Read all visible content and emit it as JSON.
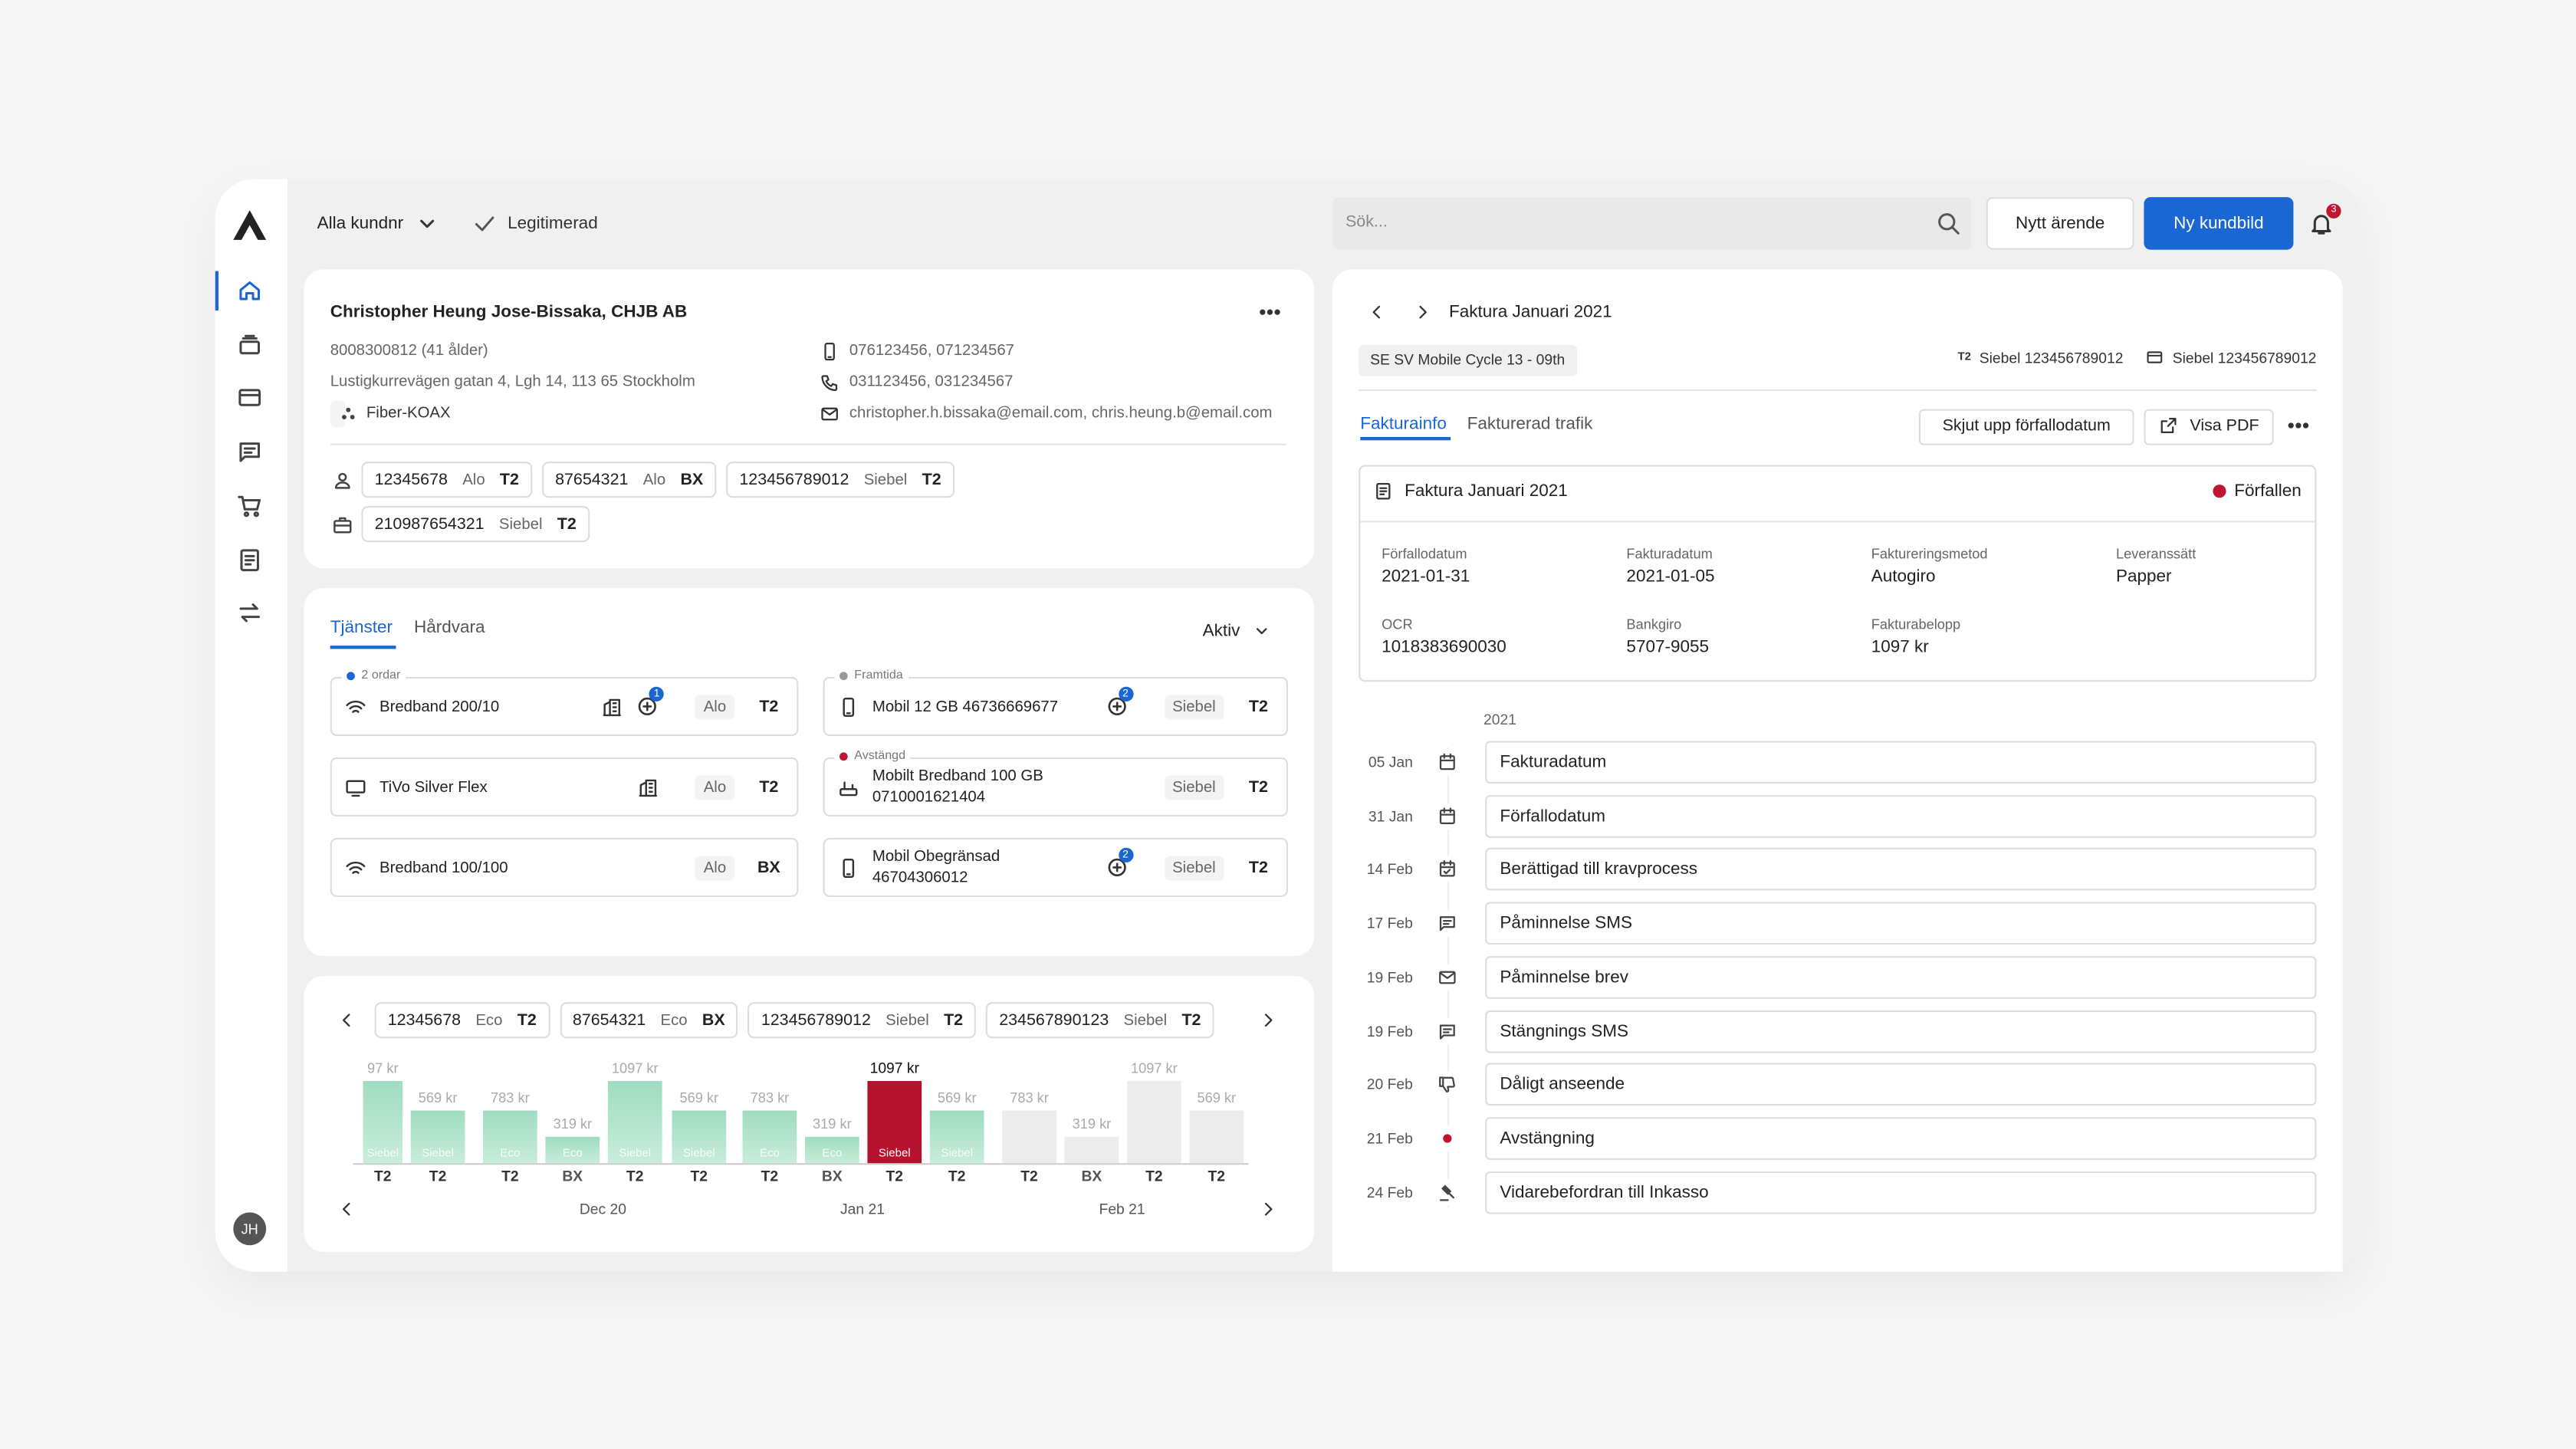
{
  "topbar": {
    "customer_filter": "Alla kundnr",
    "status": "Legitimerad",
    "search_placeholder": "Sök...",
    "new_case": "Nytt ärende",
    "new_view": "Ny kundbild",
    "notifications": "3"
  },
  "user": {
    "initials": "JH"
  },
  "customer": {
    "name": "Christopher Heung Jose-Bissaka, CHJB AB",
    "id_age": "8008300812 (41 ålder)",
    "address": "Lustigkurrevägen gatan 4, Lgh 14, 113 65 Stockholm",
    "connection": "Fiber-KOAX",
    "mobile": "076123456, 071234567",
    "phone": "031123456, 031234567",
    "email": "christopher.h.bissaka@email.com, chris.heung.b@email.com",
    "accounts": [
      [
        {
          "number": "12345678",
          "system": "Alo",
          "brand": "T2"
        },
        {
          "number": "87654321",
          "system": "Alo",
          "brand": "BX"
        },
        {
          "number": "123456789012",
          "system": "Siebel",
          "brand": "T2"
        }
      ],
      [
        {
          "number": "210987654321",
          "system": "Siebel",
          "brand": "T2"
        }
      ]
    ]
  },
  "services": {
    "tabs": [
      "Tjänster",
      "Hårdvara"
    ],
    "filter": "Aktiv",
    "items": [
      {
        "status": "2 ordar",
        "name": "Bredband 200/10",
        "orders": "1",
        "system": "Alo",
        "brand": "T2"
      },
      {
        "name": "TiVo Silver Flex",
        "system": "Alo",
        "brand": "T2"
      },
      {
        "name": "Bredband 100/100",
        "system": "Alo",
        "brand": "BX"
      },
      {
        "status": "Framtida",
        "name": "Mobil 12 GB 46736669677",
        "orders": "2",
        "system": "Siebel",
        "brand": "T2"
      },
      {
        "status": "Avstängd",
        "name": "Mobilt Bredband 100 GB",
        "number": "0710001621404",
        "system": "Siebel",
        "brand": "T2"
      },
      {
        "name": "Mobil Obegränsad 46704306012",
        "orders": "2",
        "system": "Siebel",
        "brand": "T2"
      }
    ]
  },
  "billing_history": {
    "accounts": [
      {
        "number": "12345678",
        "system": "Eco",
        "brand": "T2"
      },
      {
        "number": "87654321",
        "system": "Eco",
        "brand": "BX"
      },
      {
        "number": "123456789012",
        "system": "Siebel",
        "brand": "T2"
      },
      {
        "number": "234567890123",
        "system": "Siebel",
        "brand": "T2"
      }
    ],
    "bars": [
      {
        "amount": "97 kr",
        "system": "Siebel",
        "brand": "T2"
      },
      {
        "amount": "569 kr",
        "system": "Siebel",
        "brand": "T2"
      },
      {
        "amount": "783 kr",
        "system": "Eco",
        "brand": "T2"
      },
      {
        "amount": "319 kr",
        "system": "Eco",
        "brand": "BX"
      },
      {
        "amount": "1097 kr",
        "system": "Siebel",
        "brand": "T2"
      },
      {
        "amount": "569 kr",
        "system": "Siebel",
        "brand": "T2"
      },
      {
        "amount": "783 kr",
        "system": "Eco",
        "brand": "T2"
      },
      {
        "amount": "319 kr",
        "system": "Eco",
        "brand": "BX"
      },
      {
        "amount": "1097 kr",
        "system": "Siebel",
        "brand": "T2"
      },
      {
        "amount": "569 kr",
        "system": "Siebel",
        "brand": "T2"
      },
      {
        "amount": "783 kr",
        "brand": "T2"
      },
      {
        "amount": "319 kr",
        "brand": "BX"
      },
      {
        "amount": "1097 kr",
        "brand": "T2"
      },
      {
        "amount": "569 kr",
        "brand": "T2"
      }
    ],
    "months": [
      "Dec 20",
      "Jan 21",
      "Feb 21"
    ]
  },
  "invoice": {
    "title": "Faktura Januari 2021",
    "cycle": "SE SV Mobile Cycle 13 - 09th",
    "references": [
      "Siebel 123456789012",
      "Siebel 123456789012"
    ],
    "tabs": [
      "Fakturainfo",
      "Fakturerad trafik"
    ],
    "actions": [
      "Skjut upp förfallodatum",
      "Visa PDF"
    ],
    "box_title": "Faktura Januari 2021",
    "status": "Förfallen",
    "fields": [
      {
        "label": "Förfallodatum",
        "value": "2021-01-31"
      },
      {
        "label": "Fakturadatum",
        "value": "2021-01-05"
      },
      {
        "label": "Faktureringsmetod",
        "value": "Autogiro"
      },
      {
        "label": "Leveranssätt",
        "value": "Papper"
      },
      {
        "label": "OCR",
        "value": "1018383690030"
      },
      {
        "label": "Bankgiro",
        "value": "5707-9055"
      },
      {
        "label": "Fakturabelopp",
        "value": "1097 kr"
      }
    ],
    "timeline_year": "2021",
    "timeline": [
      {
        "date": "05 Jan",
        "label": "Fakturadatum"
      },
      {
        "date": "31 Jan",
        "label": "Förfallodatum"
      },
      {
        "date": "14 Feb",
        "label": "Berättigad till kravprocess"
      },
      {
        "date": "17 Feb",
        "label": "Påminnelse SMS"
      },
      {
        "date": "19 Feb",
        "label": "Påminnelse brev"
      },
      {
        "date": "19 Feb",
        "label": "Stängnings SMS"
      },
      {
        "date": "20 Feb",
        "label": "Dåligt anseende"
      },
      {
        "date": "21 Feb",
        "label": "Avstängning"
      },
      {
        "date": "24 Feb",
        "label": "Vidarebefordran till Inkasso"
      }
    ]
  }
}
